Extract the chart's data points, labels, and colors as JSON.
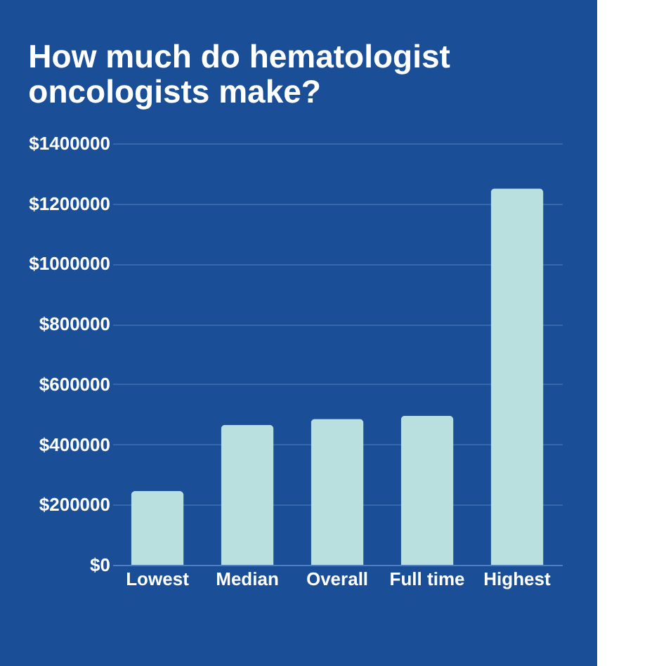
{
  "chart_data": {
    "type": "bar",
    "title": "How much do hematologist oncologists make?",
    "categories": [
      "Lowest",
      "Median",
      "Overall",
      "Full time",
      "Highest"
    ],
    "values": [
      245000,
      465000,
      485000,
      495000,
      1250000
    ],
    "color": "#b9dfdf",
    "ylim": [
      0,
      1400000
    ],
    "yticks": [
      {
        "value": 0,
        "label": "$0"
      },
      {
        "value": 200000,
        "label": "$200000"
      },
      {
        "value": 400000,
        "label": "$400000"
      },
      {
        "value": 600000,
        "label": "$600000"
      },
      {
        "value": 800000,
        "label": "$800000"
      },
      {
        "value": 1000000,
        "label": "$1000000"
      },
      {
        "value": 1200000,
        "label": "$1200000"
      },
      {
        "value": 1400000,
        "label": "$1400000"
      }
    ],
    "grid": "y"
  }
}
